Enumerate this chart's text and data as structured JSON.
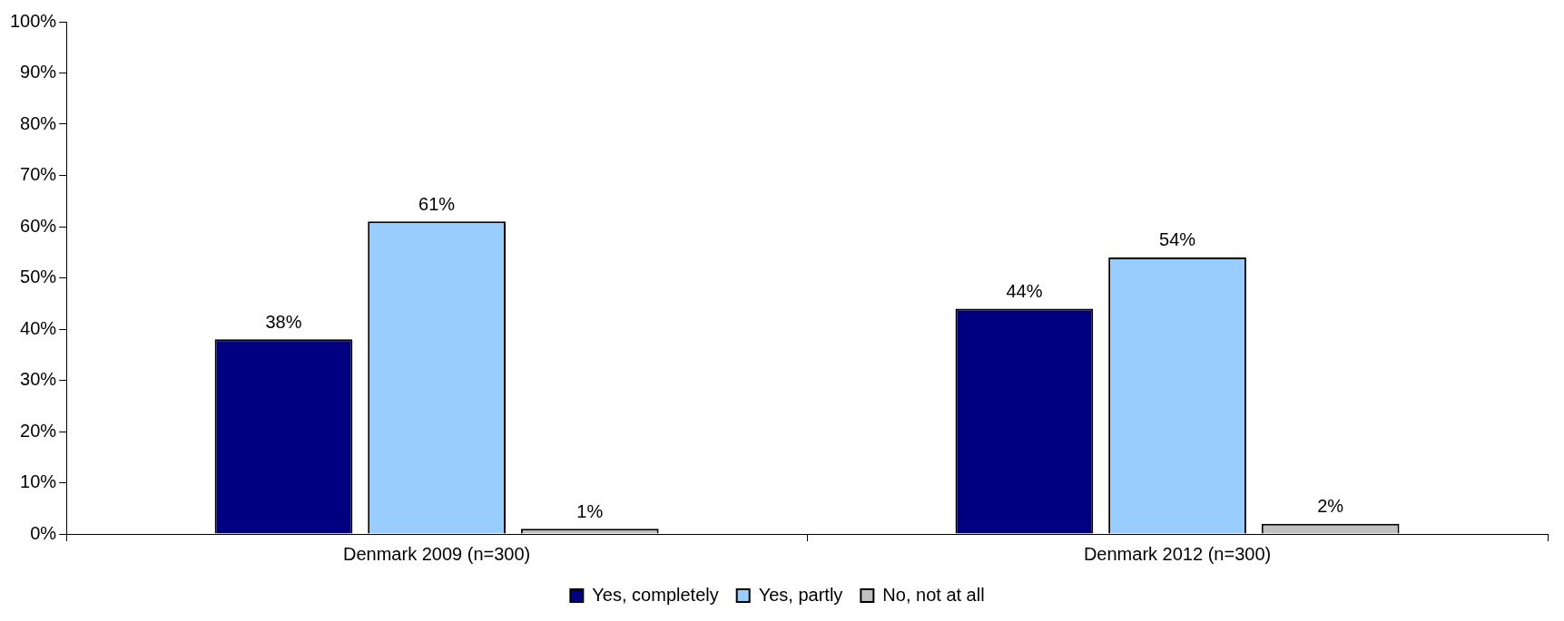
{
  "chart_data": {
    "type": "bar",
    "categories": [
      "Denmark 2009 (n=300)",
      "Denmark 2012 (n=300)"
    ],
    "series": [
      {
        "name": "Yes, completely",
        "color": "#000080",
        "values": [
          38,
          44
        ],
        "value_labels": [
          "38%",
          "44%"
        ]
      },
      {
        "name": "Yes, partly",
        "color": "#99ccff",
        "values": [
          61,
          54
        ],
        "value_labels": [
          "61%",
          "54%"
        ]
      },
      {
        "name": "No, not at all",
        "color": "#c0c0c0",
        "values": [
          1,
          2
        ],
        "value_labels": [
          "1%",
          "2%"
        ]
      }
    ],
    "ylim": [
      0,
      100
    ],
    "yticks": [
      {
        "value": 0,
        "label": "0%"
      },
      {
        "value": 10,
        "label": "10%"
      },
      {
        "value": 20,
        "label": "20%"
      },
      {
        "value": 30,
        "label": "30%"
      },
      {
        "value": 40,
        "label": "40%"
      },
      {
        "value": 50,
        "label": "50%"
      },
      {
        "value": 60,
        "label": "60%"
      },
      {
        "value": 70,
        "label": "70%"
      },
      {
        "value": 80,
        "label": "80%"
      },
      {
        "value": 90,
        "label": "90%"
      },
      {
        "value": 100,
        "label": "100%"
      }
    ],
    "grid": false,
    "legend": "bottom"
  }
}
